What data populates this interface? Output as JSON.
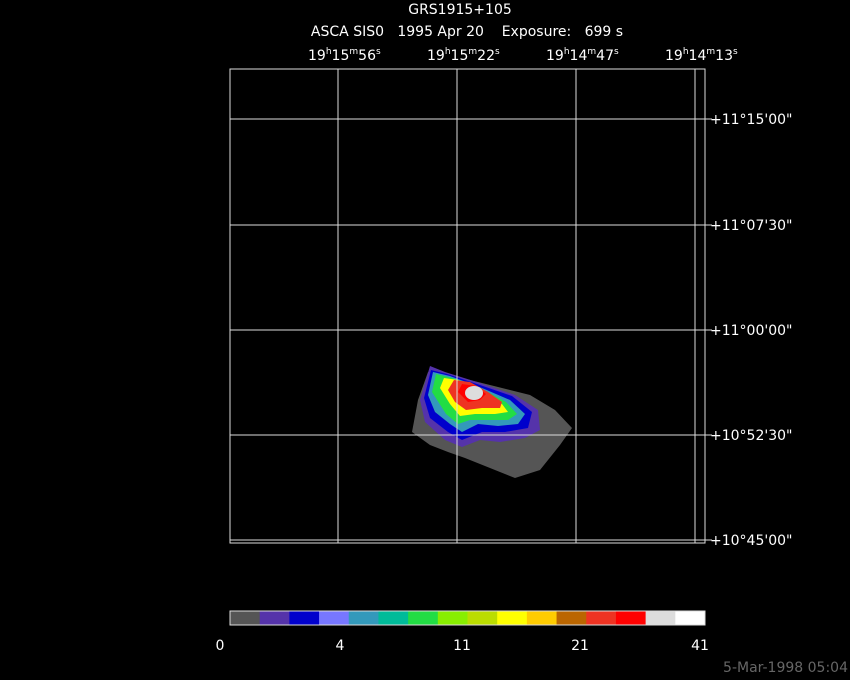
{
  "title": "GRS1915+105",
  "subtitle": "ASCA SIS0   1995 Apr 20    Exposure:   699 s",
  "ra_labels": [
    [
      "19",
      "h",
      "15",
      "m",
      "56",
      "s"
    ],
    [
      "19",
      "h",
      "15",
      "m",
      "22",
      "s"
    ],
    [
      "19",
      "h",
      "14",
      "m",
      "47",
      "s"
    ],
    [
      "19",
      "h",
      "14",
      "m",
      "13",
      "s"
    ]
  ],
  "dec_labels": [
    "+11°15'00\"",
    "+11°07'30\"",
    "+11°00'00\"",
    "+10°52'30\"",
    "+10°45'00\""
  ],
  "colorbar": {
    "colors": [
      "#555555",
      "#5533aa",
      "#0000cc",
      "#7777ff",
      "#3399bb",
      "#00bb99",
      "#22dd44",
      "#88ee00",
      "#bbdd00",
      "#ffff00",
      "#ffcc00",
      "#bb6600",
      "#ee3322",
      "#ff0000",
      "#dddddd",
      "#ffffff"
    ],
    "labels": [
      "0",
      "4",
      "11",
      "21",
      "41"
    ]
  },
  "timestamp": "5-Mar-1998 05:04"
}
